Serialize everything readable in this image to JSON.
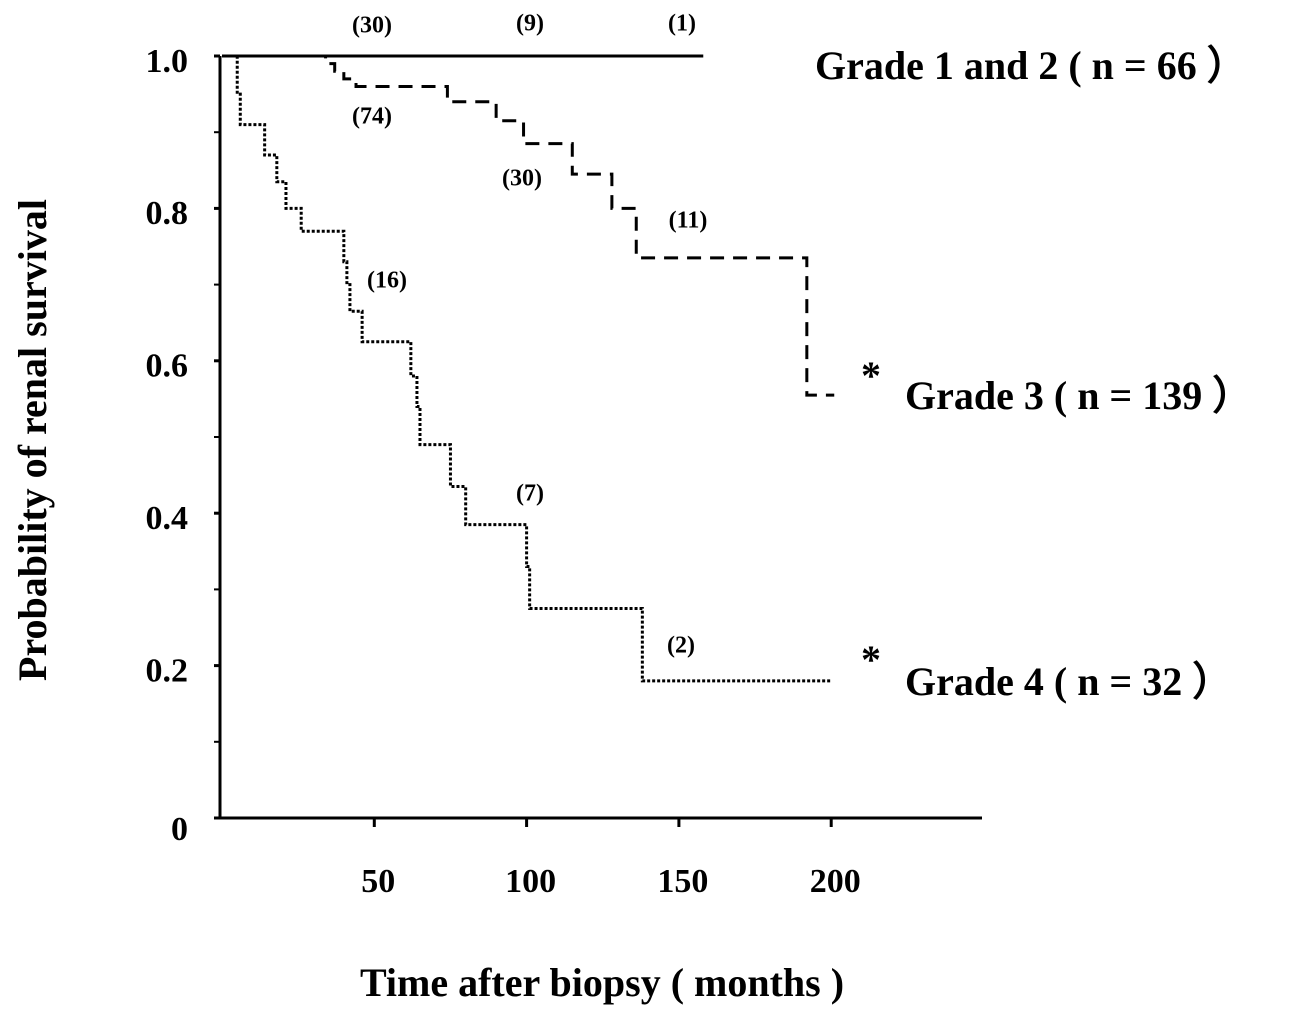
{
  "chart_data": {
    "type": "step",
    "x_label": "Time after biopsy ( months )",
    "y_label": "Probability of renal survival",
    "xlim": [
      0,
      250
    ],
    "ylim": [
      0,
      1
    ],
    "xticks": [
      50,
      100,
      150,
      200
    ],
    "yticks": [
      0,
      0.2,
      0.4,
      0.6,
      0.8,
      {
        "value": 1,
        "label": "1.0"
      }
    ],
    "yminorticks": [
      0.1,
      0.3,
      0.5,
      0.7,
      0.9
    ],
    "series": [
      {
        "name": "Grade 1 and 2 ( n = 66 ）",
        "color": "#000000",
        "style": "solid",
        "x": [
          0,
          158
        ],
        "values": [
          1,
          1
        ]
      },
      {
        "name": "Grade 3 ( n = 139 ）",
        "color": "#000000",
        "style": "dashed",
        "x": [
          0,
          34,
          37,
          40,
          44,
          74,
          90,
          99,
          115,
          128,
          136,
          192,
          201
        ],
        "values": [
          1,
          0.99,
          0.98,
          0.97,
          0.96,
          0.94,
          0.915,
          0.885,
          0.845,
          0.8,
          0.735,
          0.555,
          0.555
        ]
      },
      {
        "name": "Grade 4 ( n = 32 ）",
        "color": "#000000",
        "style": "dotted",
        "x": [
          0,
          5,
          6,
          14,
          18,
          21,
          26,
          40,
          41,
          42,
          46,
          62,
          64,
          65,
          75,
          80,
          100,
          101,
          138,
          200
        ],
        "values": [
          1,
          0.95,
          0.91,
          0.87,
          0.835,
          0.8,
          0.77,
          0.73,
          0.7,
          0.665,
          0.625,
          0.58,
          0.54,
          0.49,
          0.435,
          0.385,
          0.33,
          0.275,
          0.18,
          0.18
        ]
      }
    ],
    "annotations": [
      "(30)",
      "(9)",
      "(1)",
      "(74)",
      "(30)",
      "(11)",
      "(16)",
      "(7)",
      "(2)",
      "*",
      "*"
    ]
  }
}
